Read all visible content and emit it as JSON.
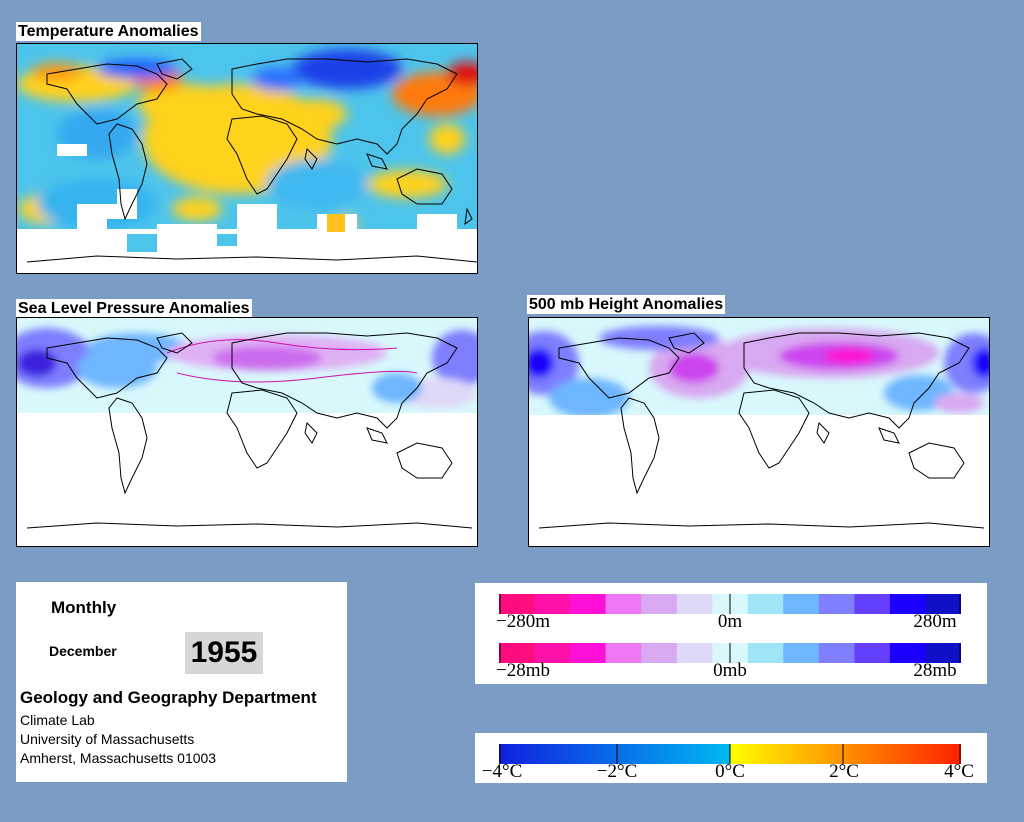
{
  "maps": {
    "temperature": {
      "title": "Temperature Anomalies"
    },
    "slp": {
      "title": "Sea Level Pressure Anomalies"
    },
    "height500": {
      "title": "500 mb Height Anomalies"
    }
  },
  "info": {
    "period": "Monthly",
    "month": "December",
    "year": "1955",
    "department": "Geology and Geography Department",
    "lab": "Climate Lab",
    "university": "University of Massachusetts",
    "address": "Amherst, Massachusetts 01003"
  },
  "legends": {
    "height": {
      "labels": [
        "−280m",
        "0m",
        "280m"
      ]
    },
    "pressure": {
      "labels": [
        "−28mb",
        "0mb",
        "28mb"
      ]
    },
    "temperature": {
      "labels": [
        "−4°C",
        "−2°C",
        "0°C",
        "2°C",
        "4°C"
      ]
    }
  },
  "colors": {
    "background": "#7b9cc4",
    "anomaly_scale": [
      "#ff0d7e",
      "#ff10aa",
      "#ff10d6",
      "#ee77f4",
      "#d8a8f0",
      "#e0d8f8",
      "#d8f8fc",
      "#a0e4f8",
      "#6eb6ff",
      "#7e7eff",
      "#6640ff",
      "#1c00ff",
      "#1010c8"
    ],
    "temperature_scale_negative": [
      "#1020e0",
      "#00b8f0"
    ],
    "temperature_scale_positive": [
      "#ffff00",
      "#ff2000"
    ]
  }
}
